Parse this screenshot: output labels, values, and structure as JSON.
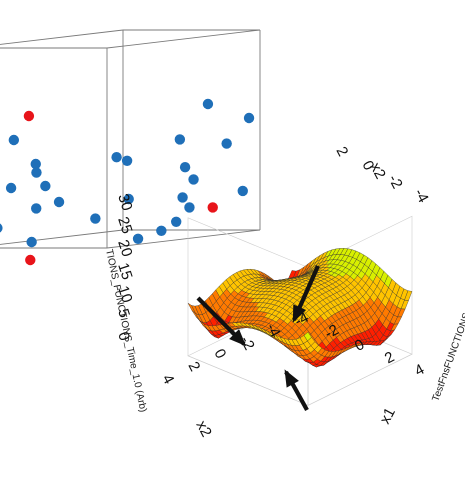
{
  "chart_data": [
    {
      "type": "scatter",
      "panel": "3d-cube",
      "series": [
        {
          "color": "#1f6fb8",
          "points": [
            [
              -0.1,
              0.62,
              0.0
            ],
            [
              0.05,
              0.6,
              0.0
            ],
            [
              0.32,
              0.54,
              0.0
            ],
            [
              0.48,
              0.42,
              0.0
            ],
            [
              0.62,
              0.63,
              1.0
            ],
            [
              0.92,
              0.56,
              1.0
            ],
            [
              0.3,
              0.3,
              0.0
            ],
            [
              0.55,
              0.31,
              0.0
            ],
            [
              0.75,
              0.48,
              0.7
            ],
            [
              0.85,
              0.28,
              0.7
            ],
            [
              0.93,
              0.2,
              0.95
            ],
            [
              0.65,
              0.23,
              0.0
            ],
            [
              0.26,
              0.18,
              0.2
            ],
            [
              0.58,
              0.12,
              0.3
            ],
            [
              0.95,
              0.05,
              0.4
            ],
            [
              0.2,
              0.1,
              0.0
            ],
            [
              0.45,
              0.03,
              0.0
            ],
            [
              0.77,
              0.19,
              0.7
            ],
            [
              0.78,
              0.01,
              0.4
            ],
            [
              0.82,
              0.14,
              0.7
            ],
            [
              0.6,
              0.2,
              0.5
            ],
            [
              -0.25,
              0.35,
              0.0
            ],
            [
              0.4,
              0.4,
              0.6
            ],
            [
              0.7,
              0.4,
              0.4
            ],
            [
              0.9,
              0.35,
              0.6
            ],
            [
              0.15,
              0.35,
              0.3
            ],
            [
              0.5,
              0.05,
              0.9
            ],
            [
              0.98,
              0.45,
              0.8
            ]
          ]
        },
        {
          "color": "#e8141a",
          "points": [
            [
              0.43,
              0.66,
              0.0
            ],
            [
              0.12,
              0.28,
              0.0
            ],
            [
              0.99,
              0.14,
              0.7
            ],
            [
              0.44,
              -0.06,
              0.0
            ]
          ]
        }
      ]
    },
    {
      "type": "surface",
      "panel": "3d-surface",
      "x1_ticks": [
        "-4",
        "-2",
        "0",
        "2",
        "4"
      ],
      "x2_ticks": [
        "-4",
        "-2",
        "0",
        "2",
        "4"
      ],
      "z_ticks": [
        "0",
        "5",
        "10",
        "15",
        "20",
        "25",
        "30"
      ],
      "z_label_left": "TIONS_FUNCTIONS_Time_1.0 (Arb)",
      "z_label_right": "TestFnsFUNCTIONS_FUNCTIO",
      "x1_label": "x1",
      "x2_label": "x2",
      "back_ticks_a": [
        "2",
        "0",
        "-2",
        "-4"
      ],
      "back_ticks_b": [
        "-4",
        "-2",
        "0",
        "2",
        "4"
      ],
      "xlim": [
        -4,
        4
      ],
      "ylim": [
        -4,
        4
      ],
      "zlim": [
        0,
        30
      ],
      "surface_function": "(x1^2 + x2 - 11)^2 + (x1 + x2^2 - 7)^2, scaled",
      "minima_marked_by_arrows": 3,
      "colormap": [
        "#ff1f00",
        "#ff7a00",
        "#ffc400",
        "#d8f000",
        "#4ade2a",
        "#3fd0c8",
        "#2a7ee0",
        "#3a2ad8",
        "#b21adc"
      ]
    }
  ]
}
